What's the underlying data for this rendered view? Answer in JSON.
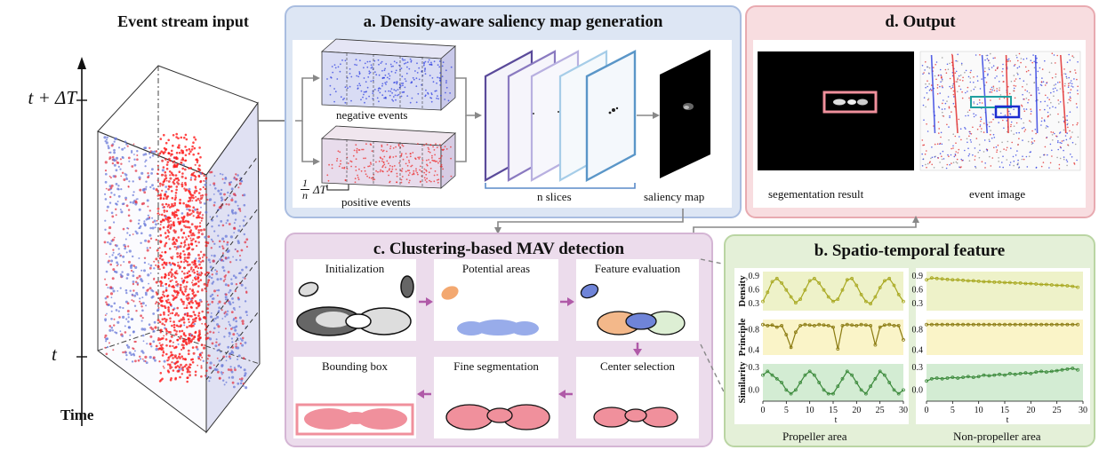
{
  "left": {
    "title": "Event stream input",
    "t_top": "t + ΔT",
    "t_bottom": "t",
    "time_label": "Time"
  },
  "panel_a": {
    "title": "a. Density-aware saliency map generation",
    "negative": "negative events",
    "positive": "positive events",
    "slice_frac": "1",
    "slice_n": "n",
    "slice_dt": "ΔT",
    "n_slices": "n slices",
    "saliency": "saliency map",
    "colors": {
      "bg": "#dde6f4",
      "border": "#a9bde0"
    }
  },
  "panel_d": {
    "title": "d. Output",
    "seg": "segementation result",
    "evt": "event image",
    "colors": {
      "bg": "#f8dde0",
      "border": "#e8aab0"
    }
  },
  "panel_c": {
    "title": "c. Clustering-based MAV detection",
    "steps": [
      "Initialization",
      "Potential areas",
      "Feature evaluation",
      "Bounding box",
      "Fine segmentation",
      "Center selection"
    ],
    "colors": {
      "bg": "#ecdcec",
      "border": "#d4b5d4",
      "arrow": "#b05aa8"
    }
  },
  "panel_b": {
    "title": "b. Spatio-temporal feature",
    "col_left": "Propeller area",
    "col_right": "Non-propeller area",
    "colors": {
      "bg": "#e4f0d8",
      "border": "#bad5a3"
    },
    "row_labels": [
      "Density",
      "Principle",
      "Similarity"
    ],
    "x_label": "t",
    "x_ticks": [
      "0",
      "5",
      "10",
      "15",
      "20",
      "25",
      "30"
    ],
    "y_ticks": {
      "density": [
        "0.9",
        "0.6",
        "0.3"
      ],
      "principle": [
        "0.8",
        "0.4"
      ],
      "similarity": [
        "0.3",
        "0.0"
      ]
    }
  },
  "chart_data": [
    {
      "type": "line",
      "title": "Density (Propeller area)",
      "xlabel": "t",
      "ylabel": "Density",
      "ylim": [
        0.15,
        1.0
      ],
      "xlim": [
        0,
        30
      ],
      "series": [
        {
          "color": "#a8a820",
          "x": [
            0,
            1,
            2,
            3,
            4,
            5,
            6,
            7,
            8,
            9,
            10,
            11,
            12,
            13,
            14,
            15,
            16,
            17,
            18,
            19,
            20,
            21,
            22,
            23,
            24,
            25,
            26,
            27,
            28,
            29,
            30
          ],
          "y": [
            0.35,
            0.55,
            0.78,
            0.85,
            0.75,
            0.6,
            0.45,
            0.32,
            0.4,
            0.6,
            0.8,
            0.85,
            0.75,
            0.6,
            0.45,
            0.35,
            0.4,
            0.6,
            0.82,
            0.85,
            0.7,
            0.5,
            0.35,
            0.3,
            0.45,
            0.65,
            0.8,
            0.85,
            0.7,
            0.5,
            0.35
          ]
        }
      ]
    },
    {
      "type": "line",
      "title": "Density (Non-propeller area)",
      "xlabel": "t",
      "ylabel": "Density",
      "ylim": [
        0.15,
        1.0
      ],
      "xlim": [
        0,
        30
      ],
      "series": [
        {
          "color": "#a8a820",
          "x": [
            0,
            1,
            2,
            3,
            4,
            5,
            6,
            7,
            8,
            9,
            10,
            11,
            12,
            13,
            14,
            15,
            16,
            17,
            18,
            19,
            20,
            21,
            22,
            23,
            24,
            25,
            26,
            27,
            28,
            29
          ],
          "y": [
            0.82,
            0.86,
            0.85,
            0.84,
            0.83,
            0.82,
            0.82,
            0.81,
            0.8,
            0.8,
            0.79,
            0.78,
            0.78,
            0.77,
            0.77,
            0.76,
            0.76,
            0.75,
            0.75,
            0.74,
            0.74,
            0.73,
            0.72,
            0.72,
            0.71,
            0.7,
            0.7,
            0.69,
            0.68,
            0.66
          ]
        }
      ]
    },
    {
      "type": "line",
      "title": "Principle (Propeller area)",
      "xlabel": "t",
      "ylabel": "Principle",
      "ylim": [
        0.3,
        1.0
      ],
      "xlim": [
        0,
        30
      ],
      "series": [
        {
          "color": "#8a7a10",
          "x": [
            0,
            1,
            2,
            3,
            4,
            5,
            6,
            7,
            8,
            9,
            10,
            11,
            12,
            13,
            14,
            15,
            16,
            17,
            18,
            19,
            20,
            21,
            22,
            23,
            24,
            25,
            26,
            27,
            28,
            29,
            30
          ],
          "y": [
            0.9,
            0.88,
            0.89,
            0.85,
            0.88,
            0.7,
            0.45,
            0.75,
            0.88,
            0.9,
            0.89,
            0.88,
            0.9,
            0.89,
            0.88,
            0.85,
            0.42,
            0.88,
            0.9,
            0.89,
            0.88,
            0.9,
            0.89,
            0.88,
            0.5,
            0.85,
            0.89,
            0.9,
            0.88,
            0.88,
            0.6
          ]
        }
      ]
    },
    {
      "type": "line",
      "title": "Principle (Non-propeller area)",
      "xlabel": "t",
      "ylabel": "Principle",
      "ylim": [
        0.3,
        1.0
      ],
      "xlim": [
        0,
        30
      ],
      "series": [
        {
          "color": "#8a7a10",
          "x": [
            0,
            1,
            2,
            3,
            4,
            5,
            6,
            7,
            8,
            9,
            10,
            11,
            12,
            13,
            14,
            15,
            16,
            17,
            18,
            19,
            20,
            21,
            22,
            23,
            24,
            25,
            26,
            27,
            28,
            29
          ],
          "y": [
            0.9,
            0.9,
            0.9,
            0.9,
            0.9,
            0.9,
            0.9,
            0.9,
            0.9,
            0.9,
            0.9,
            0.9,
            0.9,
            0.9,
            0.9,
            0.9,
            0.9,
            0.9,
            0.9,
            0.9,
            0.9,
            0.9,
            0.9,
            0.9,
            0.9,
            0.9,
            0.9,
            0.9,
            0.9,
            0.9
          ]
        }
      ]
    },
    {
      "type": "line",
      "title": "Similarity (Propeller area)",
      "xlabel": "t",
      "ylabel": "Similarity",
      "ylim": [
        -0.15,
        0.35
      ],
      "xlim": [
        0,
        30
      ],
      "series": [
        {
          "color": "#3c8a3c",
          "x": [
            0,
            1,
            2,
            3,
            4,
            5,
            6,
            7,
            8,
            9,
            10,
            11,
            12,
            13,
            14,
            15,
            16,
            17,
            18,
            19,
            20,
            21,
            22,
            23,
            24,
            25,
            26,
            27,
            28,
            29,
            30
          ],
          "y": [
            0.2,
            0.25,
            0.2,
            0.15,
            0.1,
            0.0,
            -0.05,
            0.0,
            0.1,
            0.2,
            0.25,
            0.2,
            0.1,
            0.0,
            -0.05,
            -0.05,
            0.05,
            0.15,
            0.25,
            0.2,
            0.1,
            0.0,
            -0.05,
            0.05,
            0.15,
            0.25,
            0.2,
            0.1,
            0.0,
            -0.05,
            0.0
          ]
        }
      ]
    },
    {
      "type": "line",
      "title": "Similarity (Non-propeller area)",
      "xlabel": "t",
      "ylabel": "Similarity",
      "ylim": [
        -0.15,
        0.35
      ],
      "xlim": [
        0,
        30
      ],
      "series": [
        {
          "color": "#3c8a3c",
          "x": [
            0,
            1,
            2,
            3,
            4,
            5,
            6,
            7,
            8,
            9,
            10,
            11,
            12,
            13,
            14,
            15,
            16,
            17,
            18,
            19,
            20,
            21,
            22,
            23,
            24,
            25,
            26,
            27,
            28,
            29
          ],
          "y": [
            0.12,
            0.15,
            0.16,
            0.15,
            0.16,
            0.17,
            0.16,
            0.17,
            0.18,
            0.17,
            0.18,
            0.2,
            0.19,
            0.2,
            0.21,
            0.2,
            0.22,
            0.21,
            0.22,
            0.23,
            0.22,
            0.24,
            0.25,
            0.24,
            0.25,
            0.26,
            0.27,
            0.28,
            0.29,
            0.27
          ]
        }
      ]
    }
  ]
}
